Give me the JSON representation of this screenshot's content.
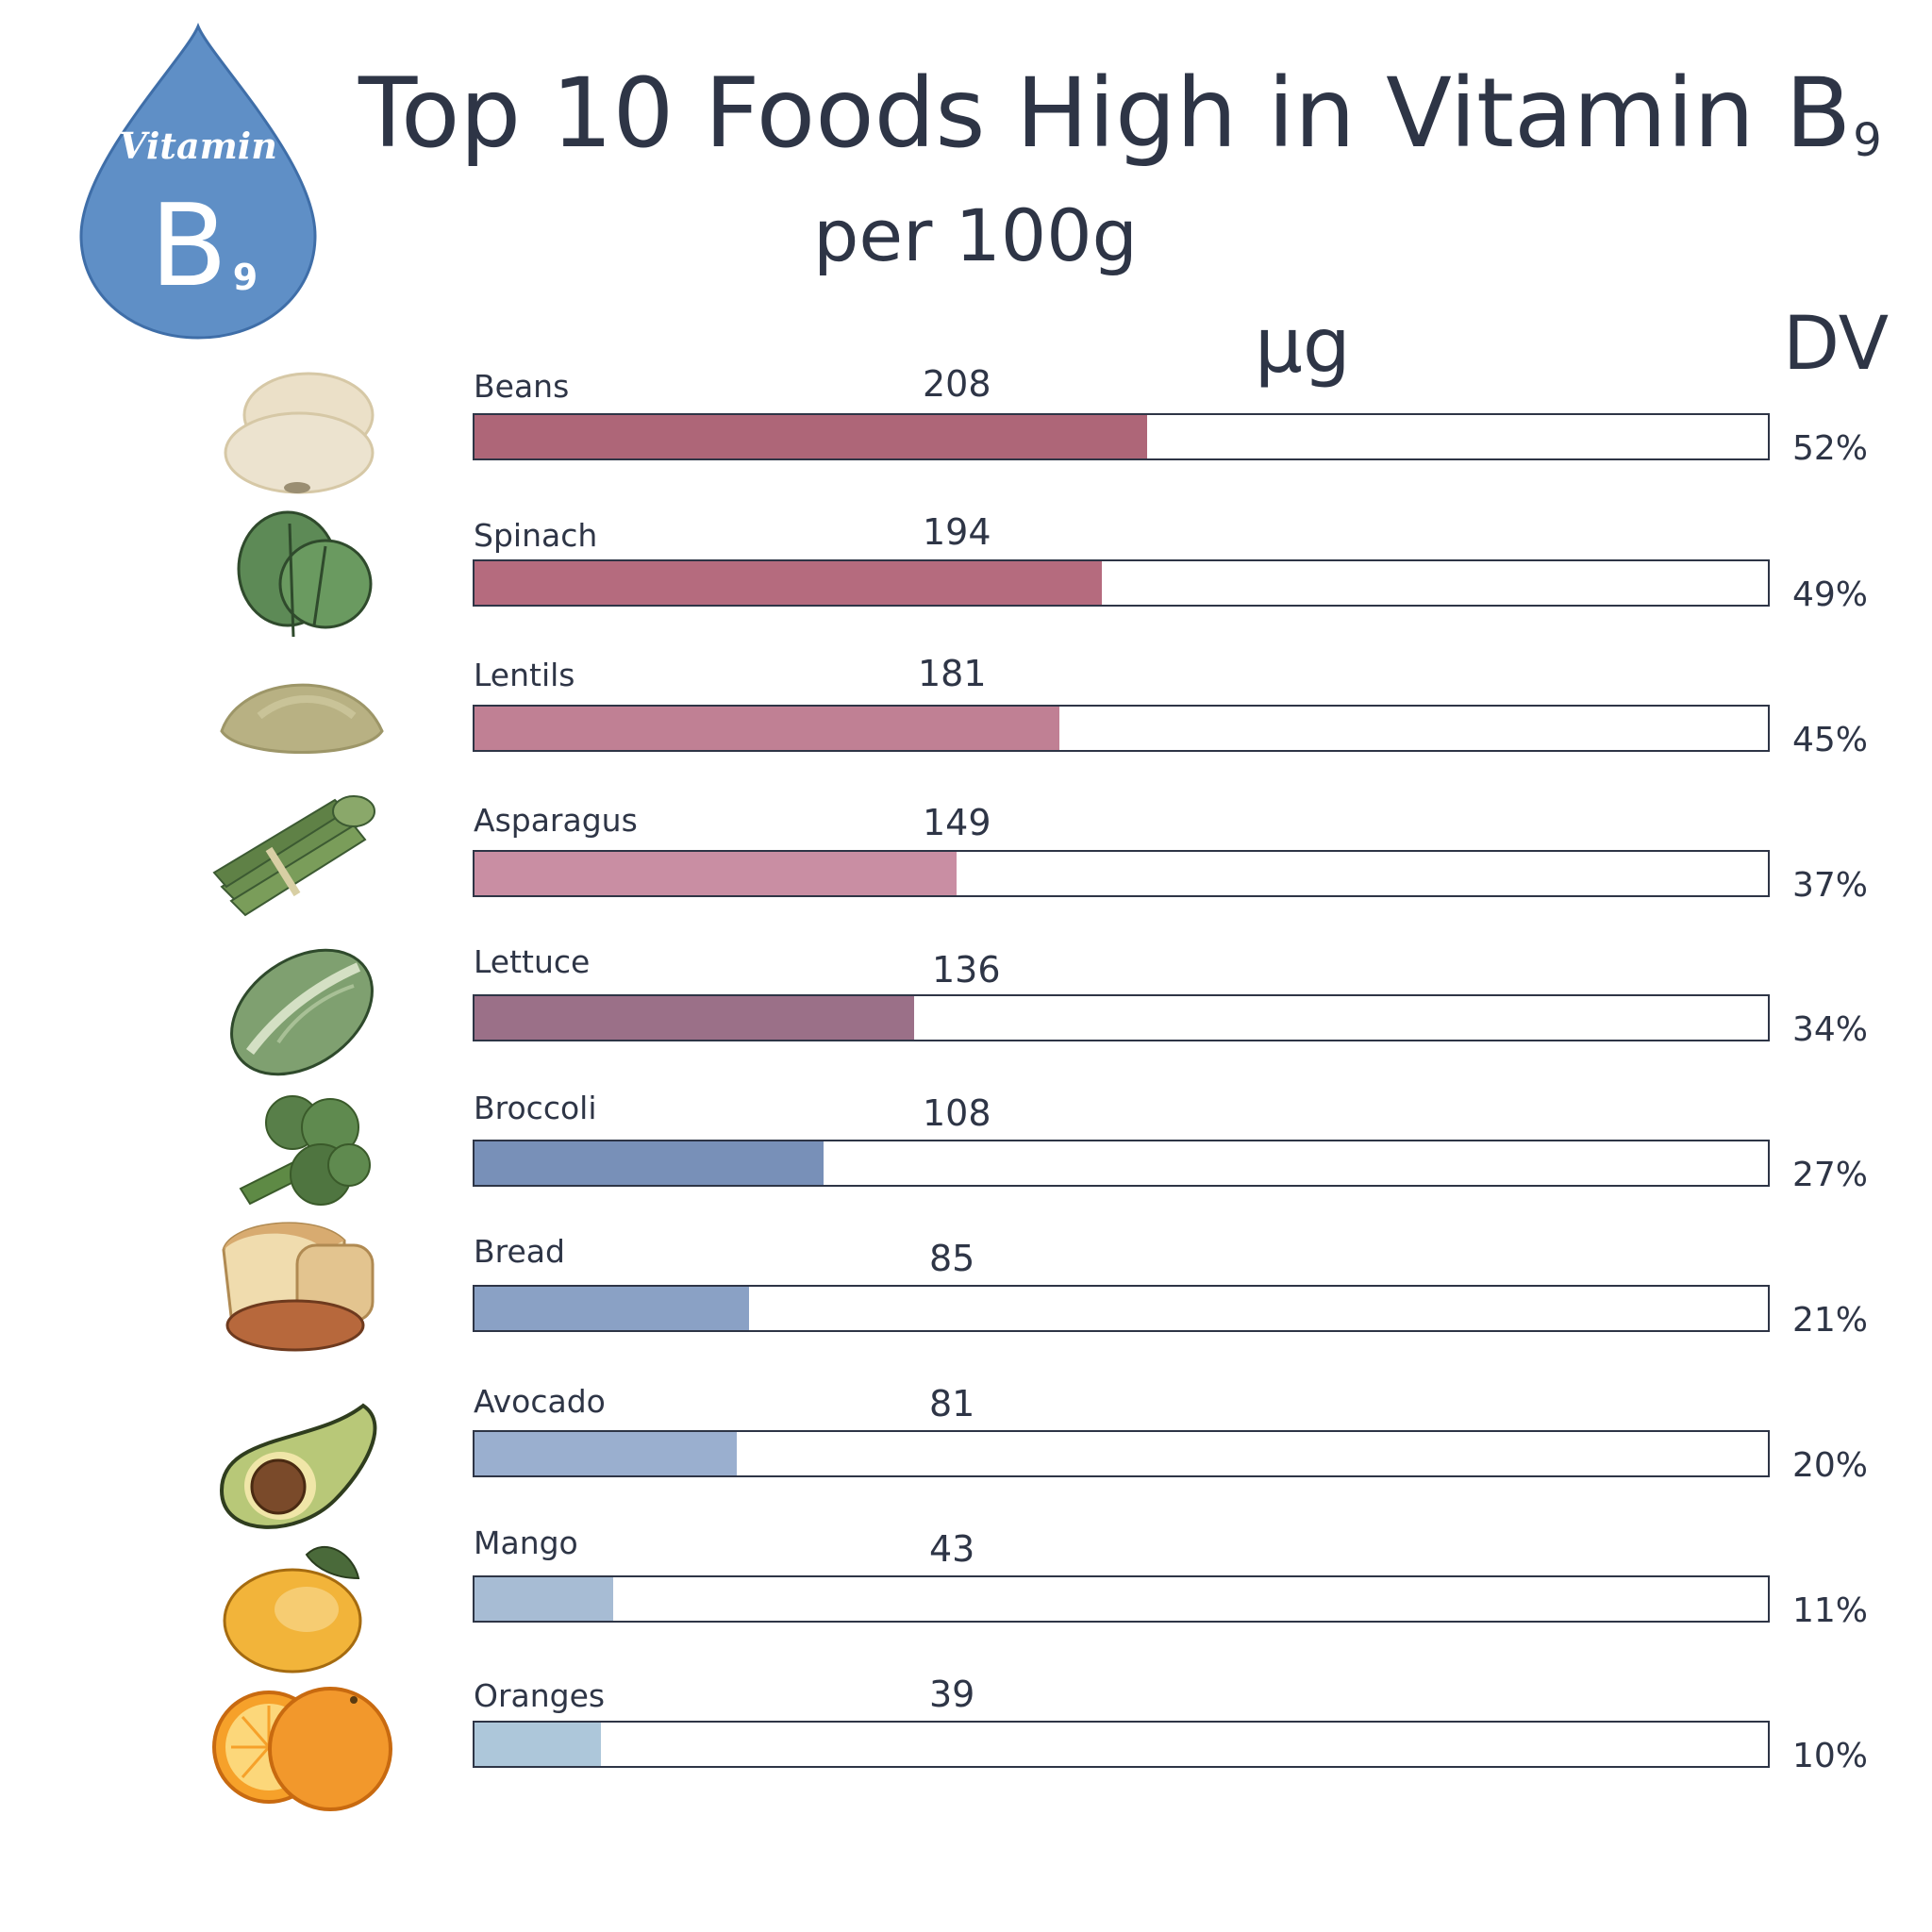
{
  "badge": {
    "top": "Vitamin",
    "letter": "B",
    "sub": "9"
  },
  "title_main": "Top 10 Foods High in Vitamin B",
  "title_sub": "9",
  "subtitle": "per 100g",
  "col_unit": "µg",
  "col_dv": "DV",
  "chart_data": {
    "type": "bar",
    "orientation": "horizontal",
    "title": "Top 10 Foods High in Vitamin B9 per 100g",
    "unit": "µg",
    "categories": [
      "Beans",
      "Spinach",
      "Lentils",
      "Asparagus",
      "Lettuce",
      "Broccoli",
      "Bread",
      "Avocado",
      "Mango",
      "Oranges"
    ],
    "values": [
      208,
      194,
      181,
      149,
      136,
      108,
      85,
      81,
      43,
      39
    ],
    "value_labels": [
      "208",
      "194",
      "181",
      "149",
      "136",
      "108",
      "85",
      "81",
      "43",
      "39"
    ],
    "dv_labels": [
      "52%",
      "49%",
      "45%",
      "37%",
      "34%",
      "27%",
      "21%",
      "20%",
      "11%",
      "10%"
    ],
    "xlim": [
      0,
      400
    ],
    "colors": [
      "#ae6678",
      "#b56b7e",
      "#c08094",
      "#c98ea3",
      "#9b7088",
      "#7890b8",
      "#8aa1c5",
      "#9aafcf",
      "#a7bcd4",
      "#adc7da"
    ]
  }
}
